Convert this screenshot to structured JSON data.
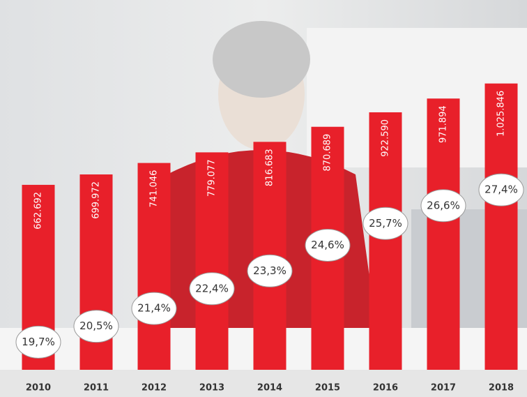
{
  "chart_data": {
    "type": "bar",
    "categories": [
      "2010",
      "2011",
      "2012",
      "2013",
      "2014",
      "2015",
      "2016",
      "2017",
      "2018"
    ],
    "series": [
      {
        "color": "#e8202a",
        "values": [
          662692,
          699972,
          741046,
          779077,
          816683,
          870689,
          922590,
          971894,
          1025846
        ],
        "value_labels": [
          "662.692",
          "699.972",
          "741.046",
          "779.077",
          "816.683",
          "870.689",
          "922.590",
          "971.894",
          "1.025.846"
        ]
      },
      {
        "color": "#ffffff",
        "axis": "y2",
        "values": [
          19.7,
          20.5,
          21.4,
          22.4,
          23.3,
          24.6,
          25.7,
          26.6,
          27.4
        ],
        "value_labels": [
          "19,7%",
          "20,5%",
          "21,4%",
          "22,4%",
          "23,3%",
          "24,6%",
          "25,7%",
          "26,6%",
          "27,4%"
        ]
      }
    ],
    "ylim": [
      0,
      1325000
    ],
    "y2lim": [
      18.3,
      37
    ]
  }
}
